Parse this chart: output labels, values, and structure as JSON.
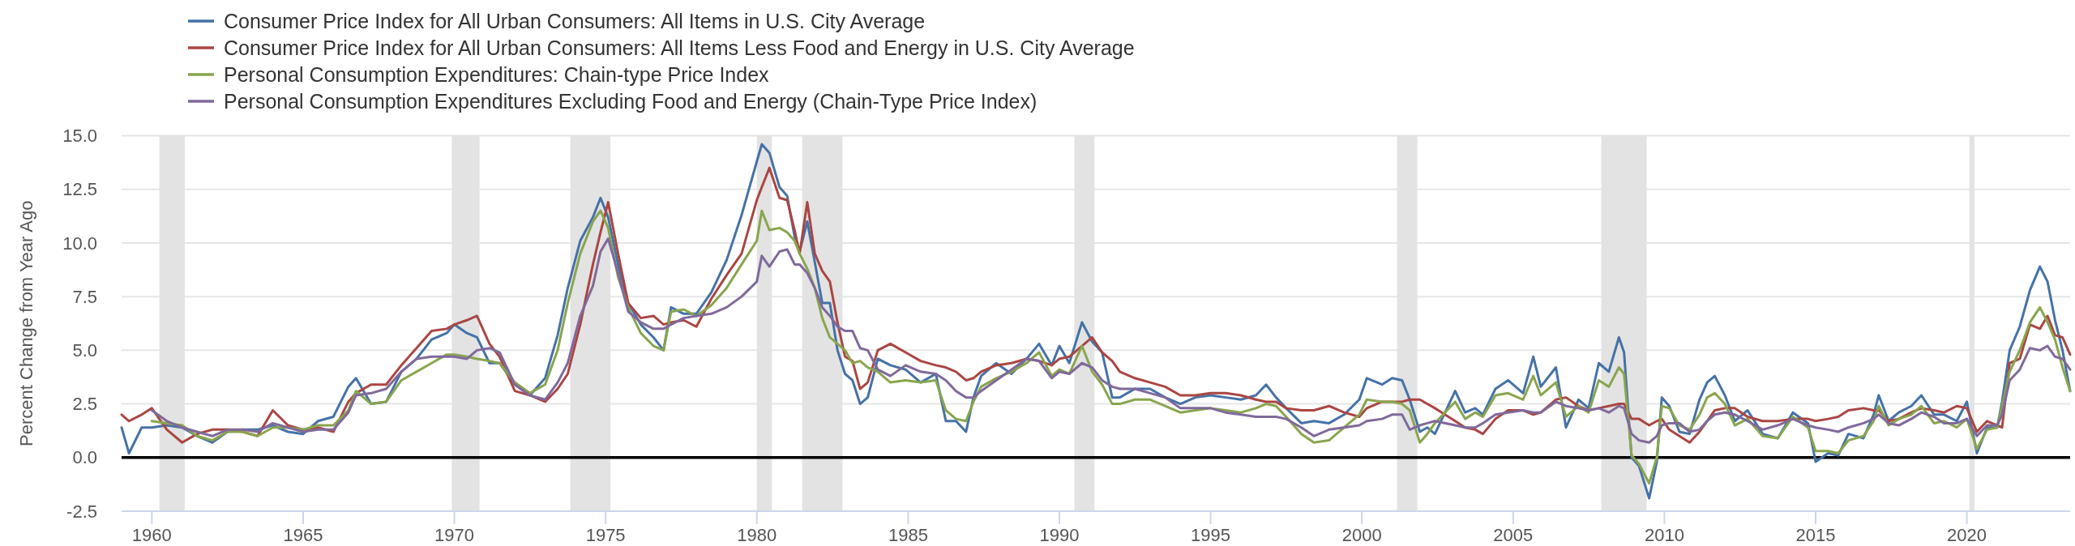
{
  "chart_data": {
    "type": "line",
    "ylabel": "Percent Change from Year Ago",
    "x": [
      "1959-01",
      "1959-04",
      "1959-09",
      "1960-01",
      "1960-07",
      "1961-01",
      "1961-07",
      "1962-01",
      "1962-07",
      "1963-01",
      "1963-07",
      "1964-01",
      "1964-07",
      "1965-01",
      "1965-07",
      "1966-01",
      "1966-07",
      "1966-10",
      "1967-04",
      "1967-10",
      "1968-04",
      "1968-10",
      "1969-04",
      "1969-10",
      "1970-01",
      "1970-06",
      "1970-10",
      "1971-03",
      "1971-07",
      "1972-01",
      "1972-07",
      "1973-01",
      "1973-06",
      "1973-10",
      "1974-03",
      "1974-08",
      "1974-11",
      "1975-02",
      "1975-06",
      "1975-10",
      "1976-03",
      "1976-08",
      "1976-12",
      "1977-03",
      "1977-08",
      "1978-01",
      "1978-07",
      "1979-01",
      "1979-07",
      "1980-01",
      "1980-03",
      "1980-06",
      "1980-10",
      "1981-01",
      "1981-04",
      "1981-06",
      "1981-09",
      "1981-12",
      "1982-03",
      "1982-06",
      "1982-09",
      "1982-12",
      "1983-03",
      "1983-06",
      "1983-09",
      "1984-01",
      "1984-06",
      "1984-12",
      "1985-06",
      "1985-12",
      "1986-04",
      "1986-08",
      "1986-12",
      "1987-03",
      "1987-06",
      "1987-12",
      "1988-06",
      "1988-12",
      "1989-05",
      "1989-10",
      "1990-01",
      "1990-05",
      "1990-10",
      "1991-02",
      "1991-06",
      "1991-10",
      "1992-01",
      "1992-07",
      "1993-01",
      "1993-07",
      "1994-01",
      "1994-07",
      "1995-01",
      "1995-07",
      "1996-01",
      "1996-07",
      "1996-11",
      "1997-03",
      "1997-07",
      "1998-01",
      "1998-06",
      "1998-12",
      "1999-06",
      "1999-12",
      "2000-03",
      "2000-09",
      "2001-01",
      "2001-05",
      "2001-08",
      "2001-12",
      "2002-03",
      "2002-06",
      "2003-02",
      "2003-06",
      "2003-10",
      "2004-01",
      "2004-06",
      "2004-11",
      "2005-05",
      "2005-09",
      "2005-12",
      "2006-06",
      "2006-10",
      "2007-03",
      "2007-07",
      "2007-11",
      "2008-03",
      "2008-07",
      "2008-09",
      "2008-12",
      "2009-03",
      "2009-07",
      "2009-10",
      "2009-12",
      "2010-03",
      "2010-07",
      "2010-11",
      "2011-03",
      "2011-06",
      "2011-09",
      "2012-01",
      "2012-05",
      "2012-10",
      "2013-04",
      "2013-10",
      "2014-04",
      "2014-10",
      "2015-01",
      "2015-06",
      "2015-10",
      "2016-02",
      "2016-08",
      "2016-12",
      "2017-02",
      "2017-06",
      "2017-10",
      "2018-03",
      "2018-07",
      "2018-12",
      "2019-04",
      "2019-09",
      "2020-01",
      "2020-05",
      "2020-09",
      "2021-01",
      "2021-03",
      "2021-06",
      "2021-10",
      "2022-02",
      "2022-06",
      "2022-09",
      "2022-12",
      "2023-03",
      "2023-06"
    ],
    "series": [
      {
        "name": "Consumer Price Index for All Urban Consumers: All Items in U.S. City Average",
        "color": "#4572a7",
        "values": [
          1.4,
          0.2,
          1.4,
          1.4,
          1.5,
          1.4,
          1.0,
          0.7,
          1.2,
          1.3,
          1.3,
          1.5,
          1.2,
          1.1,
          1.7,
          1.9,
          3.3,
          3.7,
          2.5,
          2.6,
          4.0,
          4.6,
          5.5,
          5.8,
          6.2,
          5.8,
          5.6,
          4.4,
          4.4,
          3.4,
          2.9,
          3.7,
          5.7,
          7.9,
          10.1,
          11.2,
          12.1,
          11.2,
          9.0,
          7.2,
          6.2,
          5.6,
          5.0,
          7.0,
          6.7,
          6.7,
          7.7,
          9.2,
          11.3,
          13.8,
          14.6,
          14.2,
          12.6,
          12.2,
          10.3,
          9.6,
          11.0,
          9.1,
          7.2,
          7.2,
          5.0,
          3.9,
          3.6,
          2.5,
          2.8,
          4.6,
          4.3,
          4.1,
          3.5,
          3.9,
          1.7,
          1.7,
          1.2,
          2.8,
          3.8,
          4.4,
          3.9,
          4.6,
          5.3,
          4.3,
          5.2,
          4.4,
          6.3,
          5.4,
          4.9,
          2.8,
          2.8,
          3.2,
          3.2,
          2.8,
          2.5,
          2.8,
          2.9,
          2.8,
          2.7,
          2.9,
          3.4,
          2.8,
          2.3,
          1.6,
          1.7,
          1.6,
          2.0,
          2.7,
          3.7,
          3.4,
          3.7,
          3.6,
          2.7,
          1.2,
          1.4,
          1.1,
          3.1,
          2.1,
          2.3,
          2.0,
          3.2,
          3.6,
          3.0,
          4.7,
          3.3,
          4.2,
          1.4,
          2.7,
          2.3,
          4.4,
          4.0,
          5.6,
          4.9,
          0.0,
          -0.4,
          -1.9,
          -0.2,
          2.8,
          2.4,
          1.2,
          1.1,
          2.7,
          3.5,
          3.8,
          2.9,
          1.7,
          2.2,
          1.1,
          0.9,
          2.1,
          1.6,
          -0.2,
          0.2,
          0.1,
          1.1,
          0.9,
          2.0,
          2.9,
          1.7,
          2.1,
          2.4,
          2.9,
          2.0,
          2.0,
          1.7,
          2.6,
          0.2,
          1.4,
          1.4,
          2.6,
          5.0,
          6.1,
          7.8,
          8.9,
          8.2,
          6.4,
          5.0,
          3.1
        ]
      },
      {
        "name": "Consumer Price Index for All Urban Consumers: All Items Less Food and Energy in U.S. City Average",
        "color": "#aa4643",
        "values": [
          2.0,
          1.7,
          2.0,
          2.3,
          1.3,
          0.7,
          1.1,
          1.3,
          1.3,
          1.2,
          1.0,
          2.2,
          1.5,
          1.3,
          1.4,
          1.2,
          2.6,
          3.0,
          3.4,
          3.4,
          4.3,
          5.1,
          5.9,
          6.0,
          6.2,
          6.4,
          6.6,
          5.3,
          4.7,
          3.1,
          2.9,
          2.6,
          3.2,
          3.9,
          6.2,
          9.0,
          10.5,
          11.9,
          9.5,
          7.2,
          6.5,
          6.6,
          6.2,
          6.3,
          6.4,
          6.1,
          7.4,
          8.5,
          9.5,
          12.0,
          12.6,
          13.5,
          12.1,
          12.0,
          10.6,
          9.5,
          11.9,
          9.5,
          8.7,
          8.2,
          6.3,
          4.7,
          4.5,
          3.2,
          3.5,
          5.0,
          5.3,
          4.9,
          4.5,
          4.3,
          4.2,
          4.0,
          3.6,
          3.7,
          4.0,
          4.3,
          4.4,
          4.6,
          4.5,
          4.3,
          4.6,
          4.7,
          5.2,
          5.6,
          4.9,
          4.5,
          4.0,
          3.7,
          3.5,
          3.3,
          2.9,
          2.9,
          3.0,
          3.0,
          2.9,
          2.7,
          2.6,
          2.6,
          2.3,
          2.2,
          2.2,
          2.4,
          2.1,
          1.9,
          2.3,
          2.6,
          2.6,
          2.6,
          2.7,
          2.7,
          2.5,
          2.3,
          1.7,
          1.4,
          1.3,
          1.1,
          1.8,
          2.2,
          2.2,
          2.0,
          2.1,
          2.7,
          2.8,
          2.4,
          2.2,
          2.3,
          2.4,
          2.5,
          2.5,
          1.8,
          1.8,
          1.5,
          1.7,
          1.8,
          1.3,
          1.0,
          0.7,
          1.2,
          1.7,
          2.2,
          2.3,
          2.3,
          1.9,
          1.7,
          1.7,
          1.8,
          1.8,
          1.7,
          1.8,
          1.9,
          2.2,
          2.3,
          2.2,
          2.2,
          1.7,
          1.8,
          2.1,
          2.3,
          2.2,
          2.1,
          2.4,
          2.3,
          1.2,
          1.7,
          1.5,
          1.4,
          4.4,
          4.6,
          6.2,
          6.0,
          6.6,
          5.7,
          5.6,
          4.8
        ]
      },
      {
        "name": "Personal Consumption Expenditures: Chain-type Price Index",
        "color": "#89a54e",
        "values": [
          null,
          null,
          null,
          1.7,
          1.6,
          1.5,
          1.0,
          0.8,
          1.2,
          1.2,
          1.0,
          1.4,
          1.4,
          1.3,
          1.5,
          1.5,
          2.2,
          3.1,
          2.5,
          2.6,
          3.6,
          4.0,
          4.4,
          4.8,
          4.8,
          4.7,
          4.6,
          4.5,
          4.4,
          3.5,
          3.0,
          3.4,
          5.0,
          7.2,
          9.5,
          11.0,
          11.5,
          10.7,
          8.4,
          7.0,
          5.8,
          5.2,
          5.0,
          6.8,
          6.9,
          6.6,
          7.1,
          7.9,
          9.0,
          10.1,
          11.5,
          10.6,
          10.7,
          10.5,
          10.1,
          9.5,
          8.8,
          7.9,
          6.5,
          5.6,
          5.3,
          5.0,
          4.4,
          4.5,
          4.2,
          4.0,
          3.5,
          3.6,
          3.5,
          3.6,
          2.2,
          1.8,
          1.7,
          2.6,
          3.3,
          3.7,
          4.0,
          4.4,
          4.9,
          3.8,
          4.1,
          3.9,
          5.2,
          4.0,
          3.4,
          2.5,
          2.5,
          2.7,
          2.7,
          2.4,
          2.1,
          2.2,
          2.3,
          2.2,
          2.1,
          2.3,
          2.5,
          2.4,
          1.9,
          1.1,
          0.7,
          0.8,
          1.4,
          2.0,
          2.7,
          2.6,
          2.6,
          2.5,
          2.2,
          0.7,
          1.1,
          1.6,
          2.6,
          1.8,
          2.1,
          1.9,
          2.9,
          3.0,
          2.7,
          3.8,
          2.9,
          3.5,
          1.9,
          2.4,
          2.1,
          3.6,
          3.3,
          4.2,
          3.9,
          0.1,
          -0.3,
          -1.2,
          0.0,
          2.4,
          2.3,
          1.5,
          1.3,
          2.0,
          2.8,
          3.0,
          2.5,
          1.5,
          1.8,
          1.0,
          0.9,
          1.9,
          1.4,
          0.3,
          0.3,
          0.2,
          0.8,
          1.0,
          1.7,
          2.4,
          1.5,
          1.8,
          2.0,
          2.4,
          1.6,
          1.7,
          1.4,
          1.8,
          0.4,
          1.3,
          1.4,
          2.4,
          4.0,
          5.0,
          6.3,
          7.0,
          6.3,
          5.5,
          4.2,
          3.1
        ]
      },
      {
        "name": "Personal Consumption Expenditures Excluding Food and Energy (Chain-Type Price Index)",
        "color": "#80699b",
        "values": [
          null,
          null,
          null,
          2.2,
          1.7,
          1.4,
          1.2,
          1.0,
          1.3,
          1.3,
          1.2,
          1.6,
          1.4,
          1.2,
          1.3,
          1.3,
          2.1,
          2.9,
          3.0,
          3.2,
          4.0,
          4.6,
          4.7,
          4.7,
          4.7,
          4.6,
          5.0,
          5.1,
          4.9,
          3.4,
          2.9,
          2.7,
          3.5,
          4.4,
          6.6,
          8.0,
          9.6,
          10.2,
          8.6,
          6.8,
          6.3,
          6.0,
          6.0,
          6.2,
          6.5,
          6.6,
          6.7,
          7.0,
          7.5,
          8.2,
          9.4,
          8.9,
          9.6,
          9.7,
          9.0,
          9.0,
          8.6,
          7.9,
          7.0,
          6.6,
          6.1,
          5.9,
          5.9,
          5.1,
          5.0,
          4.1,
          3.8,
          4.3,
          4.0,
          3.9,
          3.6,
          3.1,
          2.8,
          2.8,
          3.1,
          3.6,
          4.1,
          4.6,
          4.5,
          3.7,
          4.0,
          3.9,
          4.4,
          4.2,
          3.6,
          3.3,
          3.2,
          3.2,
          3.0,
          2.8,
          2.3,
          2.3,
          2.3,
          2.1,
          2.0,
          1.9,
          1.9,
          1.9,
          1.8,
          1.4,
          1.0,
          1.3,
          1.4,
          1.5,
          1.7,
          1.8,
          2.0,
          2.0,
          1.3,
          1.5,
          1.6,
          1.7,
          1.5,
          1.4,
          1.4,
          1.6,
          2.0,
          2.1,
          2.2,
          2.1,
          2.1,
          2.6,
          2.4,
          2.3,
          2.2,
          2.3,
          2.1,
          2.4,
          2.3,
          1.1,
          0.8,
          0.7,
          1.0,
          1.5,
          1.6,
          1.6,
          1.2,
          1.3,
          1.7,
          2.0,
          2.1,
          2.0,
          1.7,
          1.3,
          1.5,
          1.8,
          1.5,
          1.4,
          1.3,
          1.2,
          1.4,
          1.6,
          1.8,
          2.0,
          1.6,
          1.5,
          1.8,
          2.1,
          1.9,
          1.6,
          1.6,
          1.8,
          1.0,
          1.5,
          1.5,
          2.0,
          3.6,
          4.1,
          5.1,
          5.0,
          5.2,
          4.7,
          4.6,
          4.1
        ]
      }
    ],
    "xlim": [
      "1959-01",
      "2023-06"
    ],
    "xticks": [
      "1960",
      "1965",
      "1970",
      "1975",
      "1980",
      "1985",
      "1990",
      "1995",
      "2000",
      "2005",
      "2010",
      "2015",
      "2020"
    ],
    "ylim": [
      -2.5,
      15
    ],
    "yticks": [
      -2.5,
      {
        "value": 0,
        "label": "0.0"
      },
      2.5,
      {
        "value": 5,
        "label": "5.0"
      },
      7.5,
      {
        "value": 10,
        "label": "10.0"
      },
      12.5,
      {
        "value": 15,
        "label": "15.0"
      }
    ],
    "bands": [
      {
        "axis": "x",
        "from": "1960-04",
        "to": "1961-02",
        "color": "#e3e3e3"
      },
      {
        "axis": "x",
        "from": "1969-12",
        "to": "1970-11",
        "color": "#e3e3e3"
      },
      {
        "axis": "x",
        "from": "1973-11",
        "to": "1975-03",
        "color": "#e3e3e3"
      },
      {
        "axis": "x",
        "from": "1980-01",
        "to": "1980-07",
        "color": "#e3e3e3"
      },
      {
        "axis": "x",
        "from": "1981-07",
        "to": "1982-11",
        "color": "#e3e3e3"
      },
      {
        "axis": "x",
        "from": "1990-07",
        "to": "1991-03",
        "color": "#e3e3e3"
      },
      {
        "axis": "x",
        "from": "2001-03",
        "to": "2001-11",
        "color": "#e3e3e3"
      },
      {
        "axis": "x",
        "from": "2007-12",
        "to": "2009-06",
        "color": "#e3e3e3"
      },
      {
        "axis": "x",
        "from": "2020-02",
        "to": "2020-04",
        "color": "#e3e3e3"
      }
    ],
    "ref_lines": [
      {
        "axis": "y",
        "value": 0,
        "color": "#000000"
      }
    ],
    "grid": "y",
    "legend": "top left"
  }
}
